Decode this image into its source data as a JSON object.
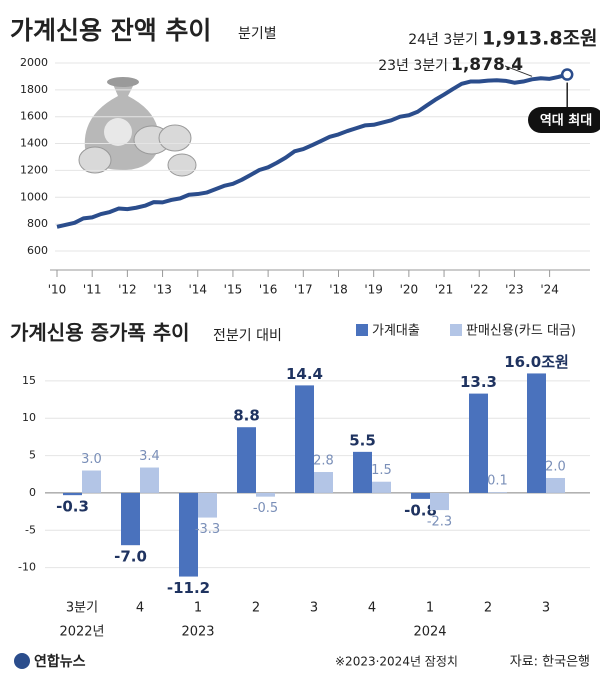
{
  "chart_data": [
    {
      "type": "line",
      "title": "가계신용 잔액 추이",
      "subtitle": "분기별",
      "x": [
        2010,
        2010.25,
        2010.5,
        2010.75,
        2011,
        2011.25,
        2011.5,
        2011.75,
        2012,
        2012.25,
        2012.5,
        2012.75,
        2013,
        2013.25,
        2013.5,
        2013.75,
        2014,
        2014.25,
        2014.5,
        2014.75,
        2015,
        2015.25,
        2015.5,
        2015.75,
        2016,
        2016.25,
        2016.5,
        2016.75,
        2017,
        2017.25,
        2017.5,
        2017.75,
        2018,
        2018.25,
        2018.5,
        2018.75,
        2019,
        2019.25,
        2019.5,
        2019.75,
        2020,
        2020.25,
        2020.5,
        2020.75,
        2021,
        2021.25,
        2021.5,
        2021.75,
        2022,
        2022.25,
        2022.5,
        2022.75,
        2023,
        2023.25,
        2023.5,
        2023.75,
        2024,
        2024.25,
        2024.5
      ],
      "series": [
        {
          "color": "#2b4d8c",
          "values": [
            780,
            795,
            810,
            843,
            850,
            875,
            890,
            916,
            912,
            922,
            937,
            964,
            962,
            980,
            992,
            1019,
            1024,
            1035,
            1060,
            1085,
            1100,
            1130,
            1166,
            1203,
            1223,
            1257,
            1295,
            1342,
            1359,
            1388,
            1419,
            1450,
            1468,
            1493,
            1514,
            1535,
            1540,
            1556,
            1573,
            1600,
            1611,
            1637,
            1682,
            1726,
            1765,
            1806,
            1845,
            1862,
            1862,
            1869,
            1871,
            1867,
            1853,
            1862,
            1878.4,
            1886,
            1882,
            1896,
            1913.8
          ]
        }
      ],
      "xlim": [
        2010,
        2024.75
      ],
      "xticks": [
        {
          "value": 2010,
          "label": "'10"
        },
        {
          "value": 2011,
          "label": "'11"
        },
        {
          "value": 2012,
          "label": "'12"
        },
        {
          "value": 2013,
          "label": "'13"
        },
        {
          "value": 2014,
          "label": "'14"
        },
        {
          "value": 2015,
          "label": "'15"
        },
        {
          "value": 2016,
          "label": "'16"
        },
        {
          "value": 2017,
          "label": "'17"
        },
        {
          "value": 2018,
          "label": "'18"
        },
        {
          "value": 2019,
          "label": "'19"
        },
        {
          "value": 2020,
          "label": "'20"
        },
        {
          "value": 2021,
          "label": "'21"
        },
        {
          "value": 2022,
          "label": "'22"
        },
        {
          "value": 2023,
          "label": "'23"
        },
        {
          "value": 2024,
          "label": "'24"
        }
      ],
      "ylim": [
        550,
        2020
      ],
      "yticks": [
        600,
        800,
        1000,
        1200,
        1400,
        1600,
        1800,
        2000
      ],
      "grid": true,
      "annotations": [
        "24년 3분기",
        "1,913.8조원",
        "23년 3분기",
        "1,878.4",
        "역대 최대"
      ]
    },
    {
      "type": "bar",
      "title": "가계신용 증가폭 추이",
      "subtitle": "전분기 대비",
      "categories": [
        [
          "3분기",
          "2022년"
        ],
        [
          "4"
        ],
        [
          "1",
          "2023"
        ],
        [
          "2"
        ],
        [
          "3"
        ],
        [
          "4"
        ],
        [
          "1",
          "2024"
        ],
        [
          "2"
        ],
        [
          "3"
        ]
      ],
      "series": [
        {
          "name": "가계대출",
          "color": "#4a72bd",
          "values": [
            -0.3,
            -7.0,
            -11.2,
            8.8,
            14.4,
            5.5,
            -0.8,
            13.3,
            16.0
          ],
          "value_labels": [
            "-0.3",
            "-7.0",
            "-11.2",
            "8.8",
            "14.4",
            "5.5",
            "-0.8",
            "13.3",
            "16.0조원"
          ]
        },
        {
          "name": "판매신용(카드 대금)",
          "color": "#b3c5e6",
          "values": [
            3.0,
            3.4,
            -3.3,
            -0.5,
            2.8,
            1.5,
            -2.3,
            0.1,
            2.0
          ],
          "value_labels": [
            "3.0",
            "3.4",
            "-3.3",
            "-0.5",
            "2.8",
            "1.5",
            "-2.3",
            "0.1",
            "2.0"
          ]
        }
      ],
      "ylim": [
        -13,
        17.8
      ],
      "yticks": [
        15,
        10,
        5,
        0,
        -5,
        -10
      ],
      "grid": true
    }
  ],
  "footer": {
    "logo": "연합뉴스",
    "note": "※2023·2024년 잠정치",
    "source": "자료: 한국은행"
  }
}
